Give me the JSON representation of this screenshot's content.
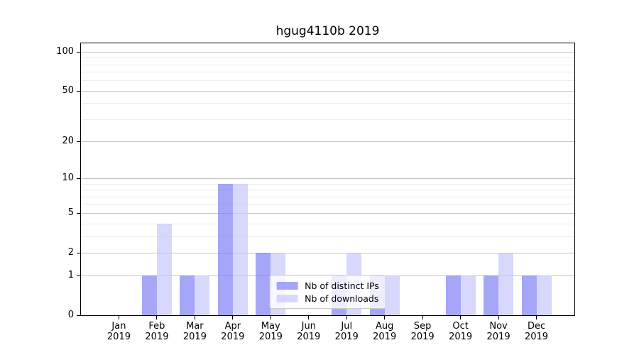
{
  "title": "hgug4110b 2019",
  "colors": {
    "bar_ips": "rgba(120,120,246,0.66)",
    "bar_downloads": "rgba(196,196,252,0.66)",
    "grid_major": "#c4c4c4",
    "grid_minor": "#ececec",
    "axis": "#000000",
    "legend_border": "#c9c9c9",
    "legend_bg": "rgba(255,255,255,0.8)"
  },
  "legend": [
    {
      "label": "Nb of distinct IPs",
      "color_key": "bar_ips"
    },
    {
      "label": "Nb of downloads",
      "color_key": "bar_downloads"
    }
  ],
  "chart_data": {
    "type": "bar",
    "title": "hgug4110b 2019",
    "categories": [
      "Jan",
      "Feb",
      "Mar",
      "Apr",
      "May",
      "Jun",
      "Jul",
      "Aug",
      "Sep",
      "Oct",
      "Nov",
      "Dec"
    ],
    "year": "2019",
    "series": [
      {
        "name": "Nb of distinct IPs",
        "values": [
          0,
          1,
          1,
          9,
          2,
          0,
          1,
          1,
          0,
          1,
          1,
          1
        ]
      },
      {
        "name": "Nb of downloads",
        "values": [
          0,
          4,
          1,
          9,
          2,
          0,
          2,
          1,
          0,
          1,
          2,
          1
        ]
      }
    ],
    "xlabel": "",
    "ylabel": "",
    "yscale": "log1p",
    "ylim": [
      0,
      116
    ],
    "yticks": [
      0,
      1,
      2,
      5,
      10,
      20,
      50,
      100
    ],
    "yticks_minor": [
      3,
      4,
      6,
      7,
      8,
      9,
      30,
      40,
      60,
      70,
      80,
      90
    ],
    "grid": true,
    "legend_position": "lower center"
  }
}
